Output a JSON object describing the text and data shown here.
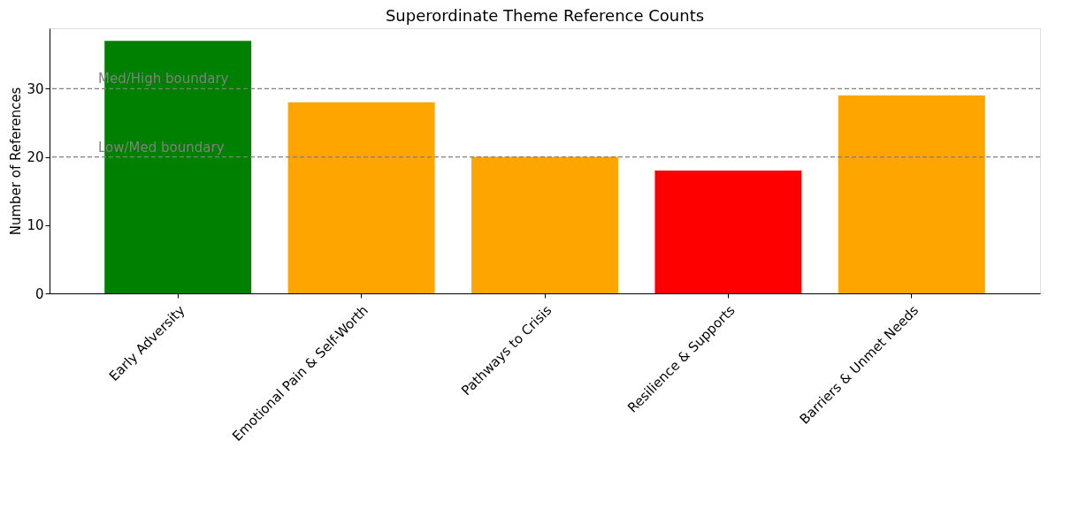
{
  "chart_data": {
    "type": "bar",
    "title": "Superordinate Theme Reference Counts",
    "ylabel": "Number of References",
    "categories": [
      "Early Adversity",
      "Emotional Pain & Self-Worth",
      "Pathways to Crisis",
      "Resilience & Supports",
      "Barriers & Unmet Needs"
    ],
    "values": [
      37,
      28,
      20,
      18,
      29
    ],
    "colors": [
      "#008000",
      "#ffa500",
      "#ffa500",
      "#ff0000",
      "#ffa500"
    ],
    "ylim": [
      0,
      38.85
    ],
    "yticks": [
      0,
      10,
      20,
      30
    ],
    "grid": false,
    "ref_lines": [
      {
        "axis": "y",
        "value": 30,
        "label": "Med/High boundary",
        "color": "#808080",
        "line_style": "dashed"
      },
      {
        "axis": "y",
        "value": 20,
        "label": "Low/Med boundary",
        "color": "#808080",
        "line_style": "dashed"
      }
    ]
  }
}
